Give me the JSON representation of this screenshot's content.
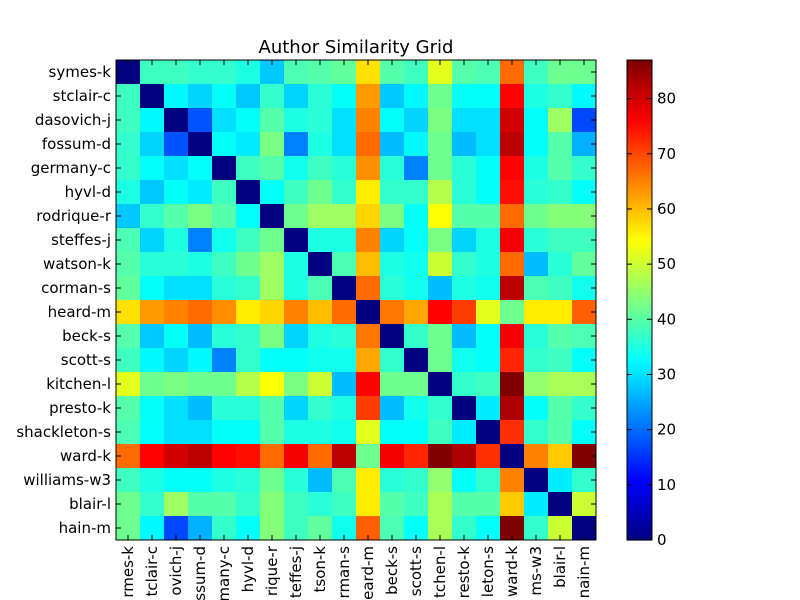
{
  "chart_data": {
    "type": "heatmap",
    "title": "Author Similarity Grid",
    "xlabel": "",
    "ylabel": "",
    "labels": [
      "symes-k",
      "stclair-c",
      "dasovich-j",
      "fossum-d",
      "germany-c",
      "hyvl-d",
      "rodrique-r",
      "steffes-j",
      "watson-k",
      "corman-s",
      "heard-m",
      "beck-s",
      "scott-s",
      "kitchen-l",
      "presto-k",
      "shackleton-s",
      "ward-k",
      "williams-w3",
      "blair-l",
      "hain-m"
    ],
    "x_tick_labels": [
      "rmes-k",
      "tclair-c",
      "ovich-j",
      "ssum-d",
      "many-c",
      "hyvl-d",
      "rique-r",
      "teffes-j",
      "tson-k",
      "rman-s",
      "eard-m",
      "beck-s",
      "scott-s",
      "tchen-l",
      "resto-k",
      "leton-s",
      "ward-k",
      "ms-w3",
      "blair-l",
      "nain-m"
    ],
    "values": [
      [
        0,
        38,
        38,
        37,
        37,
        35,
        28,
        39,
        40,
        41,
        57,
        40,
        38,
        52,
        40,
        39,
        67,
        38,
        42,
        42
      ],
      [
        38,
        0,
        32,
        29,
        33,
        28,
        37,
        29,
        36,
        33,
        63,
        28,
        32,
        42,
        33,
        33,
        76,
        35,
        37,
        32
      ],
      [
        38,
        32,
        0,
        18,
        30,
        33,
        40,
        35,
        36,
        30,
        65,
        33,
        29,
        43,
        30,
        30,
        80,
        33,
        46,
        17
      ],
      [
        37,
        29,
        18,
        0,
        33,
        31,
        43,
        22,
        35,
        30,
        67,
        27,
        32,
        42,
        27,
        30,
        82,
        33,
        40,
        26
      ],
      [
        37,
        33,
        30,
        33,
        0,
        38,
        40,
        34,
        38,
        36,
        64,
        36,
        22,
        42,
        36,
        33,
        76,
        35,
        40,
        37
      ],
      [
        35,
        28,
        33,
        31,
        38,
        0,
        33,
        38,
        42,
        37,
        56,
        37,
        37,
        48,
        36,
        33,
        75,
        36,
        37,
        33
      ],
      [
        28,
        37,
        40,
        43,
        40,
        33,
        0,
        42,
        46,
        46,
        58,
        43,
        33,
        54,
        40,
        40,
        67,
        42,
        44,
        44
      ],
      [
        39,
        29,
        35,
        22,
        34,
        38,
        42,
        0,
        35,
        35,
        65,
        29,
        33,
        43,
        29,
        35,
        77,
        36,
        38,
        38
      ],
      [
        40,
        36,
        36,
        35,
        38,
        42,
        46,
        35,
        0,
        39,
        60,
        35,
        34,
        50,
        37,
        35,
        67,
        27,
        36,
        41
      ],
      [
        41,
        33,
        30,
        30,
        36,
        37,
        46,
        35,
        39,
        0,
        67,
        36,
        34,
        27,
        35,
        34,
        82,
        39,
        38,
        34
      ],
      [
        57,
        63,
        65,
        67,
        64,
        56,
        58,
        65,
        60,
        67,
        0,
        66,
        62,
        76,
        71,
        52,
        42,
        56,
        56,
        68
      ],
      [
        40,
        28,
        33,
        27,
        36,
        37,
        43,
        29,
        35,
        36,
        66,
        0,
        37,
        42,
        27,
        33,
        77,
        36,
        40,
        39
      ],
      [
        38,
        32,
        29,
        32,
        22,
        37,
        33,
        33,
        34,
        34,
        62,
        37,
        0,
        42,
        34,
        33,
        73,
        37,
        38,
        33
      ],
      [
        52,
        42,
        43,
        42,
        42,
        48,
        54,
        43,
        50,
        27,
        76,
        42,
        42,
        0,
        37,
        38,
        87,
        45,
        47,
        47
      ],
      [
        40,
        33,
        30,
        27,
        36,
        36,
        40,
        29,
        37,
        35,
        71,
        27,
        34,
        37,
        0,
        31,
        83,
        33,
        40,
        37
      ],
      [
        39,
        33,
        30,
        30,
        33,
        33,
        40,
        35,
        35,
        34,
        52,
        33,
        33,
        38,
        31,
        0,
        72,
        37,
        40,
        33
      ],
      [
        67,
        76,
        80,
        82,
        76,
        75,
        67,
        77,
        67,
        82,
        42,
        77,
        73,
        87,
        83,
        72,
        0,
        65,
        59,
        87
      ],
      [
        38,
        35,
        33,
        33,
        35,
        36,
        42,
        36,
        27,
        39,
        56,
        36,
        37,
        45,
        33,
        37,
        65,
        0,
        31,
        37
      ],
      [
        42,
        37,
        46,
        40,
        40,
        37,
        44,
        38,
        36,
        38,
        56,
        40,
        38,
        47,
        40,
        40,
        59,
        31,
        0,
        50
      ],
      [
        42,
        32,
        17,
        26,
        37,
        33,
        44,
        38,
        41,
        34,
        68,
        39,
        33,
        47,
        37,
        33,
        87,
        37,
        50,
        0
      ]
    ],
    "colormap": "jet",
    "vmin": 0,
    "vmax": 87,
    "colorbar_ticks": [
      0,
      10,
      20,
      30,
      40,
      50,
      60,
      70,
      80
    ],
    "grid": false
  }
}
